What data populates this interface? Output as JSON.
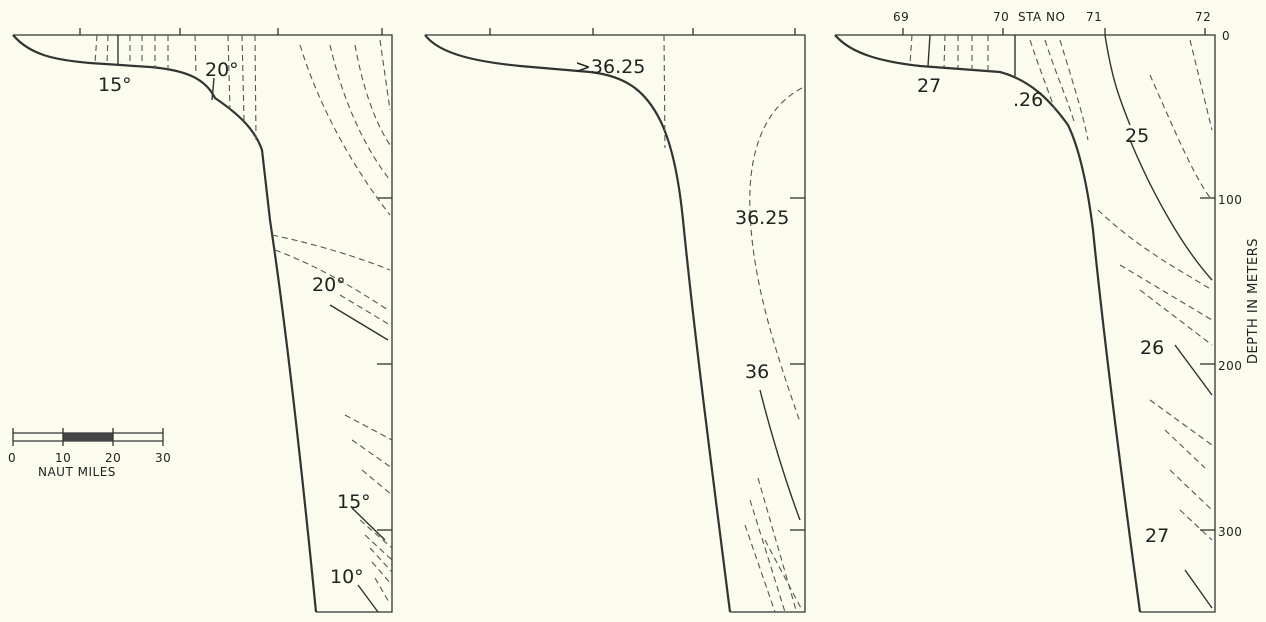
{
  "panel_temperature": {
    "labels": {
      "t15_shelf": "15°",
      "t20_shelf": "20°",
      "t20_deep": "20°",
      "t15_deep": "15°",
      "t10_deep": "10°"
    }
  },
  "panel_salinity": {
    "labels": {
      "s_gt_3625": ">36.25",
      "s_3625": "36.25",
      "s_36": "36"
    }
  },
  "panel_sigma": {
    "stations": [
      "69",
      "70",
      "71",
      "72"
    ],
    "station_axis_label": "STA NO",
    "labels": {
      "sig27_shelf": "27",
      "sig26_shelf": ".26",
      "sig25": "25",
      "sig26_deep": "26",
      "sig27_deep": "27"
    }
  },
  "depth_axis": {
    "label": "DEPTH IN METERS",
    "ticks": [
      "0",
      "100",
      "200",
      "300"
    ]
  },
  "scale_bar": {
    "ticks": [
      "0",
      "10",
      "20",
      "30"
    ],
    "label": "NAUT MILES"
  }
}
